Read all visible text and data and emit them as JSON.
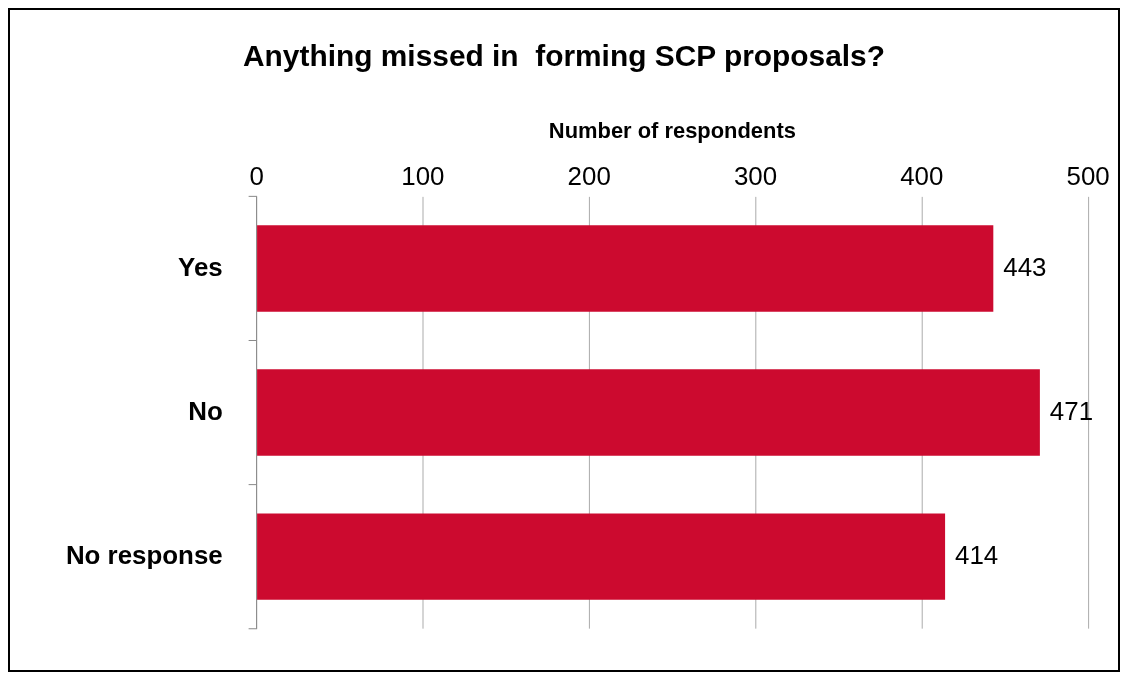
{
  "chart_data": {
    "type": "bar",
    "orientation": "horizontal",
    "title": "Anything missed in  forming SCP proposals?",
    "xlabel": "Number of respondents",
    "categories": [
      "Yes",
      "No",
      "No response"
    ],
    "values": [
      443,
      471,
      414
    ],
    "color": "#cc0a2f",
    "xlim": [
      0,
      500
    ],
    "xticks": [
      0,
      100,
      200,
      300,
      400,
      500
    ],
    "grid": "x",
    "data_labels": true,
    "legend": false
  }
}
